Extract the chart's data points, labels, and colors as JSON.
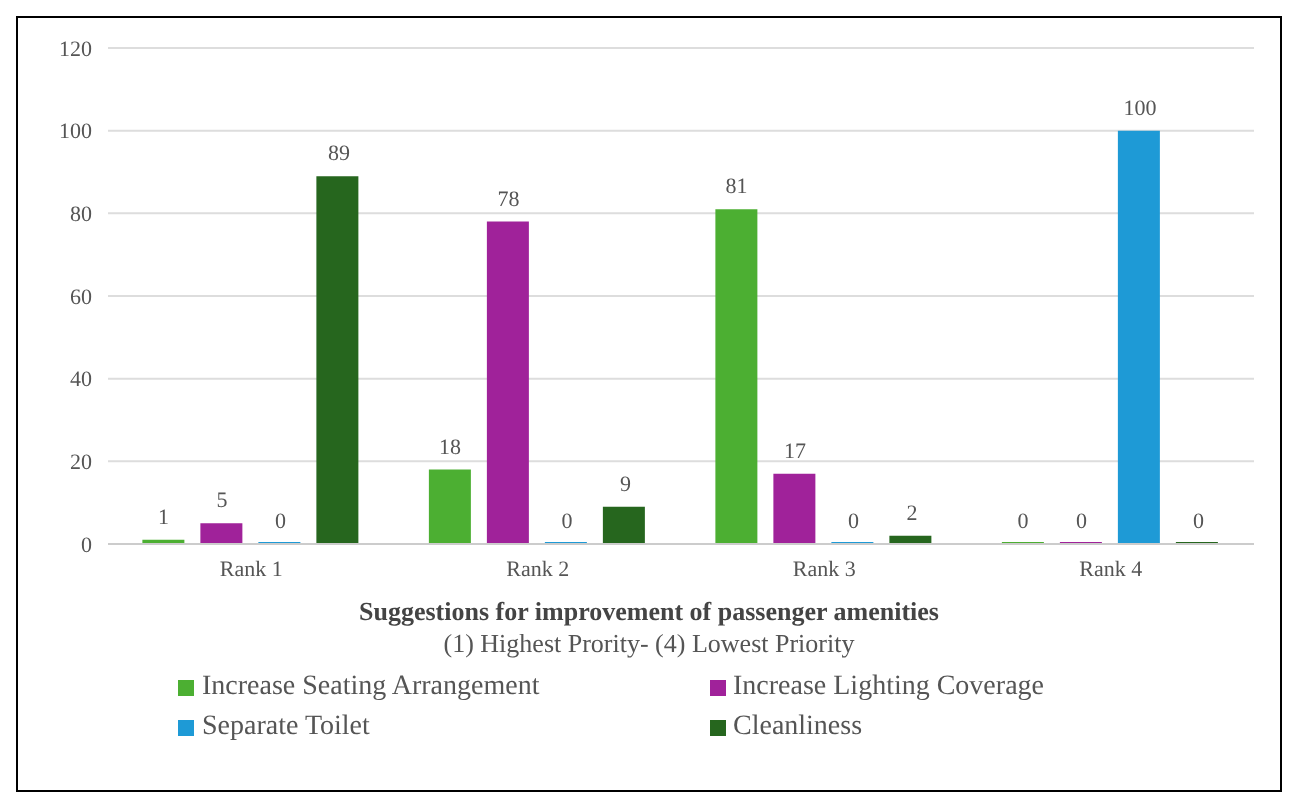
{
  "chart_data": {
    "type": "bar",
    "title": "Suggestions for improvement of passenger amenities",
    "subtitle": "(1) Highest Prority- (4) Lowest Priority",
    "categories": [
      "Rank 1",
      "Rank 2",
      "Rank 3",
      "Rank 4"
    ],
    "series": [
      {
        "name": "Increase Seating Arrangement",
        "color": "#4caf32",
        "values": [
          1,
          18,
          81,
          0
        ]
      },
      {
        "name": "Increase Lighting Coverage",
        "color": "#a0229a",
        "values": [
          5,
          78,
          17,
          0
        ]
      },
      {
        "name": "Separate Toilet",
        "color": "#1e9ad6",
        "values": [
          0,
          0,
          0,
          100
        ]
      },
      {
        "name": "Cleanliness",
        "color": "#26661e",
        "values": [
          89,
          9,
          2,
          0
        ]
      }
    ],
    "ylim": [
      0,
      120
    ],
    "yticks": [
      0,
      20,
      40,
      60,
      80,
      100,
      120
    ],
    "grid": "y",
    "legend": "bottom",
    "data_labels": true
  }
}
